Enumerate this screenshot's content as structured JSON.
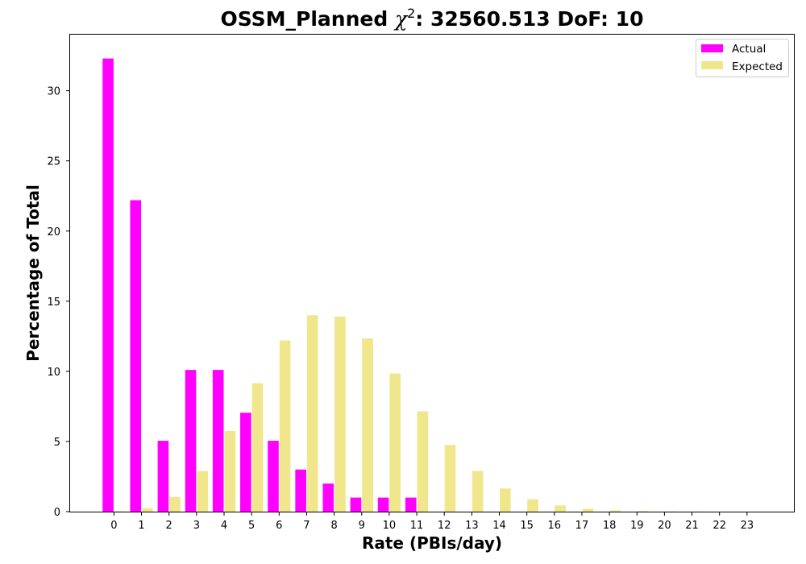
{
  "chart_data": {
    "type": "bar",
    "title": {
      "prefix": "OSSM_Planned ",
      "symbol": "χ",
      "superscript": "2",
      "suffix": ": 32560.513 DoF: 10"
    },
    "xlabel": "Rate (PBIs/day)",
    "ylabel": "Percentage of Total",
    "categories": [
      "0",
      "1",
      "2",
      "3",
      "4",
      "5",
      "6",
      "7",
      "8",
      "9",
      "10",
      "11",
      "12",
      "13",
      "14",
      "15",
      "16",
      "17",
      "18",
      "19",
      "20",
      "21",
      "22",
      "23"
    ],
    "series": [
      {
        "name": "Actual",
        "color": "#ff00ff",
        "values": [
          32.3,
          22.2,
          5.05,
          10.1,
          10.1,
          7.05,
          5.05,
          3.0,
          2.0,
          1.0,
          1.0,
          1.0,
          0,
          0,
          0,
          0,
          0,
          0,
          0,
          0,
          0,
          0,
          0,
          0
        ]
      },
      {
        "name": "Expected",
        "color": "#f0e68c",
        "values": [
          0.03,
          0.25,
          1.05,
          2.9,
          5.75,
          9.15,
          12.2,
          14.0,
          13.9,
          12.35,
          9.85,
          7.15,
          4.75,
          2.9,
          1.65,
          0.88,
          0.44,
          0.2,
          0.09,
          0.04,
          0.02,
          0.01,
          0.0,
          0.0
        ]
      }
    ],
    "yticks": [
      0,
      5,
      10,
      15,
      20,
      25,
      30
    ],
    "ylim": [
      0,
      34
    ],
    "grid": false,
    "legend_position": "top-right"
  }
}
